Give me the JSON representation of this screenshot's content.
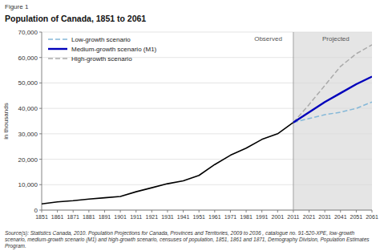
{
  "chart_data": {
    "type": "line",
    "figure_label": "Figure 1",
    "title": "Population of Canada, 1851 to 2061",
    "y_label": "in thousands",
    "source": "Source(s): Statistics Canada, 2010. Population Projections for Canada, Provinces and Territories, 2009 to 2036 , catalogue no. 91-520-XPE, low-growth scenario, medium-growth scenario (M1) and high-growth scenario, censuses of population, 1851, 1861 and 1871, Demography Division, Population Estimates Program.",
    "xlim": [
      1851,
      2061
    ],
    "xticks": [
      1851,
      1861,
      1871,
      1881,
      1891,
      1901,
      1911,
      1921,
      1931,
      1941,
      1951,
      1961,
      1971,
      1981,
      1991,
      2001,
      2011,
      2021,
      2031,
      2041,
      2051,
      2061
    ],
    "ylim": [
      0,
      70000
    ],
    "yticks": [
      {
        "value": 0,
        "label": "0"
      },
      {
        "value": 10000,
        "label": "10,000"
      },
      {
        "value": 20000,
        "label": "20,000"
      },
      {
        "value": 30000,
        "label": "30,000"
      },
      {
        "value": 40000,
        "label": "40,000"
      },
      {
        "value": 50000,
        "label": "50,000"
      },
      {
        "value": 60000,
        "label": "60,000"
      },
      {
        "value": 70000,
        "label": "70,000"
      }
    ],
    "grid": true,
    "legend": "upper left",
    "projection_start": 2011,
    "projection_color": "#e5e5e5",
    "annotations": [
      {
        "text": "Observed",
        "x": 1995,
        "y": 69500
      },
      {
        "text": "Projected",
        "x": 2038,
        "y": 69500
      }
    ],
    "series": [
      {
        "color": "#000000",
        "line_style": "solid",
        "x": [
          1851,
          1861,
          1871,
          1881,
          1891,
          1901,
          1911,
          1921,
          1931,
          1941,
          1951,
          1961,
          1971,
          1981,
          1991,
          2001,
          2011
        ],
        "values": [
          2436,
          3230,
          3689,
          4325,
          4833,
          5371,
          7207,
          8788,
          10377,
          11507,
          13648,
          17909,
          21568,
          24343,
          27797,
          30007,
          34480
        ]
      },
      {
        "name": "Low-growth scenario",
        "color": "#85b8d8",
        "line_style": "dashed",
        "x": [
          2011,
          2021,
          2031,
          2041,
          2051,
          2061
        ],
        "values": [
          34480,
          36000,
          37500,
          38500,
          40000,
          42500
        ]
      },
      {
        "name": "Medium-growth scenario (M1)",
        "color": "#0000bb",
        "line_style": "solid",
        "x": [
          2011,
          2021,
          2031,
          2041,
          2051,
          2061
        ],
        "values": [
          34480,
          38500,
          42500,
          46000,
          49500,
          52500
        ]
      },
      {
        "name": "High-growth scenario",
        "color": "#aaaaaa",
        "line_style": "dashed",
        "x": [
          2011,
          2021,
          2031,
          2041,
          2051,
          2061
        ],
        "values": [
          34480,
          41500,
          49000,
          56500,
          61500,
          65000
        ]
      }
    ]
  }
}
